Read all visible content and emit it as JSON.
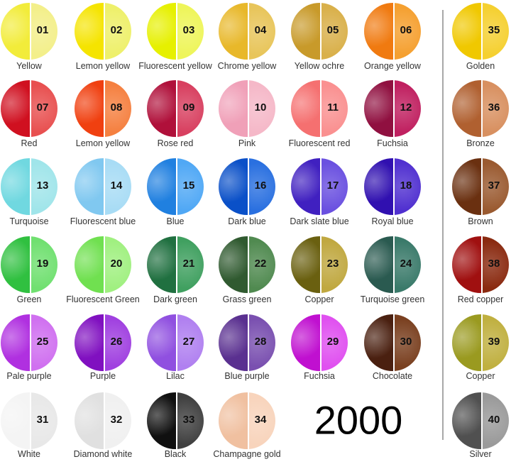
{
  "colors": [
    {
      "num": "01",
      "name": "Yellow",
      "gloss": "#f2ec3a",
      "powder": "#f3ef8a"
    },
    {
      "num": "02",
      "name": "Lemon yellow",
      "gloss": "#f5e400",
      "powder": "#eef06a"
    },
    {
      "num": "03",
      "name": "Fluorescent yellow",
      "gloss": "#e6f000",
      "powder": "#eef55a"
    },
    {
      "num": "04",
      "name": "Chrome yellow",
      "gloss": "#e8b82a",
      "powder": "#e8c55a"
    },
    {
      "num": "05",
      "name": "Yellow ochre",
      "gloss": "#c89a2a",
      "powder": "#d9b04a"
    },
    {
      "num": "06",
      "name": "Orange yellow",
      "gloss": "#f07a10",
      "powder": "#f5a030"
    },
    {
      "num": "07",
      "name": "Red",
      "gloss": "#d01020",
      "powder": "#e85050"
    },
    {
      "num": "08",
      "name": "Lemon yellow",
      "gloss": "#f04010",
      "powder": "#f58040"
    },
    {
      "num": "09",
      "name": "Rose red",
      "gloss": "#b0103a",
      "powder": "#d84060"
    },
    {
      "num": "10",
      "name": "Pink",
      "gloss": "#f0a0b8",
      "powder": "#f5b8c8"
    },
    {
      "num": "11",
      "name": "Fluorescent red",
      "gloss": "#f57070",
      "powder": "#fa9090"
    },
    {
      "num": "12",
      "name": "Fuchsia",
      "gloss": "#901040",
      "powder": "#c02060"
    },
    {
      "num": "13",
      "name": "Turquoise",
      "gloss": "#70d8e0",
      "powder": "#a0e5ea"
    },
    {
      "num": "14",
      "name": "Fluorescent blue",
      "gloss": "#80c8f0",
      "powder": "#a8dcf5"
    },
    {
      "num": "15",
      "name": "Blue",
      "gloss": "#2080e0",
      "powder": "#50a8f5"
    },
    {
      "num": "16",
      "name": "Dark blue",
      "gloss": "#0a50c8",
      "powder": "#2a70e0"
    },
    {
      "num": "17",
      "name": "Dark slate blue",
      "gloss": "#4020c0",
      "powder": "#6a50e0"
    },
    {
      "num": "18",
      "name": "Royal blue",
      "gloss": "#3010b0",
      "powder": "#5030d0"
    },
    {
      "num": "19",
      "name": "Green",
      "gloss": "#30c040",
      "powder": "#70e070"
    },
    {
      "num": "20",
      "name": "Fluorescent Green",
      "gloss": "#70e050",
      "powder": "#a0f080"
    },
    {
      "num": "21",
      "name": "Dark green",
      "gloss": "#207040",
      "powder": "#40a060"
    },
    {
      "num": "22",
      "name": "Grass green",
      "gloss": "#305a30",
      "powder": "#508a50"
    },
    {
      "num": "23",
      "name": "Copper",
      "gloss": "#6a6010",
      "powder": "#c0a840"
    },
    {
      "num": "24",
      "name": "Turquoise green",
      "gloss": "#2a5a50",
      "powder": "#3a7a6a"
    },
    {
      "num": "25",
      "name": "Pale purple",
      "gloss": "#b030e0",
      "powder": "#d070f0"
    },
    {
      "num": "26",
      "name": "Purple",
      "gloss": "#8010c0",
      "powder": "#a040e0"
    },
    {
      "num": "27",
      "name": "Lilac",
      "gloss": "#9050e0",
      "powder": "#b080f0"
    },
    {
      "num": "28",
      "name": "Blue purple",
      "gloss": "#5a3090",
      "powder": "#7a50b0"
    },
    {
      "num": "29",
      "name": "Fuchsia",
      "gloss": "#c010d0",
      "powder": "#e050f0"
    },
    {
      "num": "30",
      "name": "Chocolate",
      "gloss": "#4a2010",
      "powder": "#7a4020"
    },
    {
      "num": "31",
      "name": "White",
      "gloss": "#f4f4f4",
      "powder": "#e8e8e8"
    },
    {
      "num": "32",
      "name": "Diamond white",
      "gloss": "#e0e0e0",
      "powder": "#f0f0f0"
    },
    {
      "num": "33",
      "name": "Black",
      "gloss": "#101010",
      "powder": "#404040"
    },
    {
      "num": "34",
      "name": "Champagne gold",
      "gloss": "#f0c0a0",
      "powder": "#f8d4bc"
    },
    {
      "num": "35",
      "name": "Golden",
      "gloss": "#f0c800",
      "powder": "#f5d030"
    },
    {
      "num": "36",
      "name": "Bronze",
      "gloss": "#b06030",
      "powder": "#d89060"
    },
    {
      "num": "37",
      "name": "Brown",
      "gloss": "#6a3010",
      "powder": "#9a5a30"
    },
    {
      "num": "38",
      "name": "Red copper",
      "gloss": "#a01010",
      "powder": "#8a2a10"
    },
    {
      "num": "39",
      "name": "Copper",
      "gloss": "#9a9a20",
      "powder": "#c0b040"
    },
    {
      "num": "40",
      "name": "Silver",
      "gloss": "#505050",
      "powder": "#9a9a9a"
    }
  ],
  "big_number": "2000"
}
